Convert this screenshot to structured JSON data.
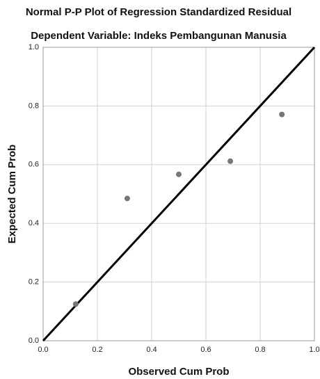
{
  "chart_data": {
    "type": "scatter",
    "title": "Normal P-P Plot of Regression Standardized Residual",
    "subtitle": "Dependent Variable: Indeks Pembangunan Manusia",
    "xlabel": "Observed Cum Prob",
    "ylabel": "Expected Cum Prob",
    "x": [
      0.12,
      0.31,
      0.5,
      0.69,
      0.88
    ],
    "values": [
      0.125,
      0.485,
      0.567,
      0.612,
      0.771
    ],
    "color": "#777777",
    "xlim": [
      0,
      1
    ],
    "ylim": [
      0,
      1
    ],
    "xticks": [
      {
        "value": 0,
        "label": "0.0"
      },
      0.2,
      0.4,
      0.6,
      0.8,
      {
        "value": 1,
        "label": "1.0"
      }
    ],
    "yticks": [
      {
        "value": 0,
        "label": "0.0"
      },
      0.2,
      0.4,
      0.6,
      0.8,
      {
        "value": 1,
        "label": "1.0"
      }
    ],
    "grid": true,
    "diagonal": true
  }
}
